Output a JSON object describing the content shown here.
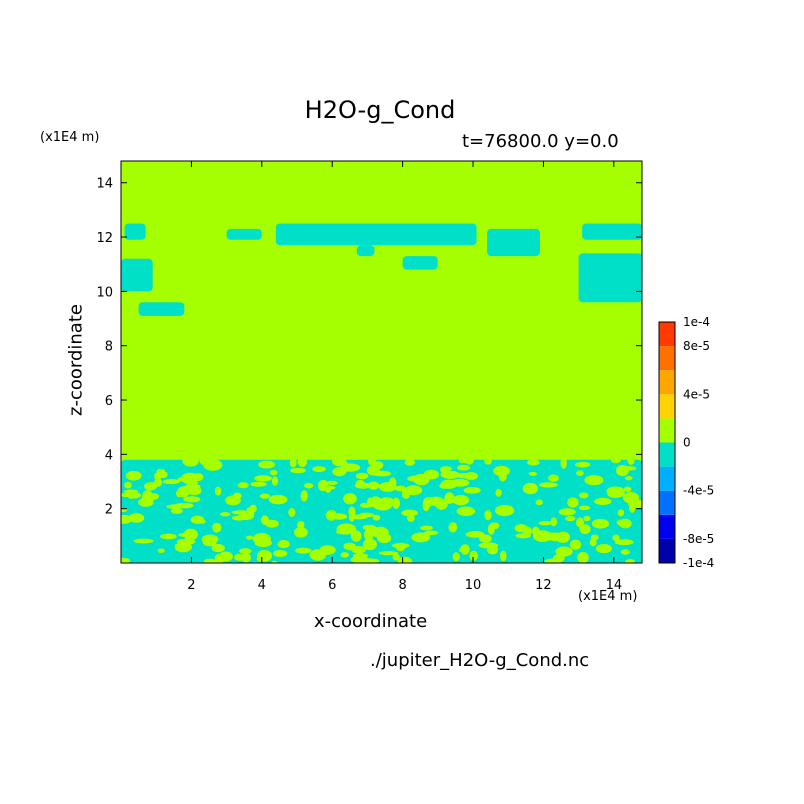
{
  "chart_data": {
    "type": "heatmap",
    "title": "H2O-g_Cond",
    "subtitle": "t=76800.0 y=0.0",
    "xlabel": "x-coordinate",
    "ylabel": "z-coordinate",
    "x_unit": "(x1E4 m)",
    "y_unit": "(x1E4 m)",
    "xlim": [
      0.0,
      14.8
    ],
    "ylim": [
      0.0,
      14.8
    ],
    "x_ticks": [
      2,
      4,
      6,
      8,
      10,
      12,
      14
    ],
    "y_ticks": [
      2,
      4,
      6,
      8,
      10,
      12,
      14
    ],
    "background_level": "0 to 2e-5",
    "colorbar": {
      "levels": [
        -0.0001,
        -8e-05,
        -6e-05,
        -4e-05,
        -2e-05,
        0,
        2e-05,
        4e-05,
        6e-05,
        8e-05,
        0.0001
      ],
      "colors": [
        "#0000aa",
        "#0000ee",
        "#0072ff",
        "#00b0ff",
        "#00e0c8",
        "#a6ff00",
        "#ffd200",
        "#ffa600",
        "#ff7000",
        "#ff3a00"
      ],
      "tick_labels": [
        "1e-4",
        "8e-5",
        "4e-5",
        "0",
        "-4e-5",
        "-8e-5",
        "-1e-4"
      ],
      "tick_values": [
        0.0001,
        8e-05,
        4e-05,
        0,
        -4e-05,
        -8e-05,
        -0.0001
      ]
    },
    "regions": [
      {
        "level": "-2e-5 to 0",
        "x": [
          0.1,
          0.7
        ],
        "z": [
          11.9,
          12.5
        ]
      },
      {
        "level": "-2e-5 to 0",
        "x": [
          0.0,
          0.9
        ],
        "z": [
          10.0,
          11.2
        ]
      },
      {
        "level": "-2e-5 to 0",
        "x": [
          0.5,
          1.8
        ],
        "z": [
          9.1,
          9.6
        ]
      },
      {
        "level": "-2e-5 to 0",
        "x": [
          3.0,
          4.0
        ],
        "z": [
          11.9,
          12.3
        ]
      },
      {
        "level": "-2e-5 to 0",
        "x": [
          4.4,
          10.1
        ],
        "z": [
          11.7,
          12.5
        ]
      },
      {
        "level": "-2e-5 to 0",
        "x": [
          6.7,
          7.2
        ],
        "z": [
          11.3,
          11.7
        ]
      },
      {
        "level": "-2e-5 to 0",
        "x": [
          8.0,
          9.0
        ],
        "z": [
          10.8,
          11.3
        ]
      },
      {
        "level": "-2e-5 to 0",
        "x": [
          10.4,
          11.9
        ],
        "z": [
          11.3,
          12.3
        ]
      },
      {
        "level": "-2e-5 to 0",
        "x": [
          13.1,
          14.8
        ],
        "z": [
          11.9,
          12.5
        ]
      },
      {
        "level": "-2e-5 to 0",
        "x": [
          13.0,
          14.8
        ],
        "z": [
          9.6,
          11.4
        ]
      },
      {
        "level": "-2e-5 to 0",
        "x": [
          0.0,
          14.8
        ],
        "z": [
          0.0,
          3.8
        ]
      }
    ]
  },
  "colors": {
    "background_level": "#a6ff00",
    "negative_level": "#00e0c8"
  },
  "filename": "./jupiter_H2O-g_Cond.nc"
}
